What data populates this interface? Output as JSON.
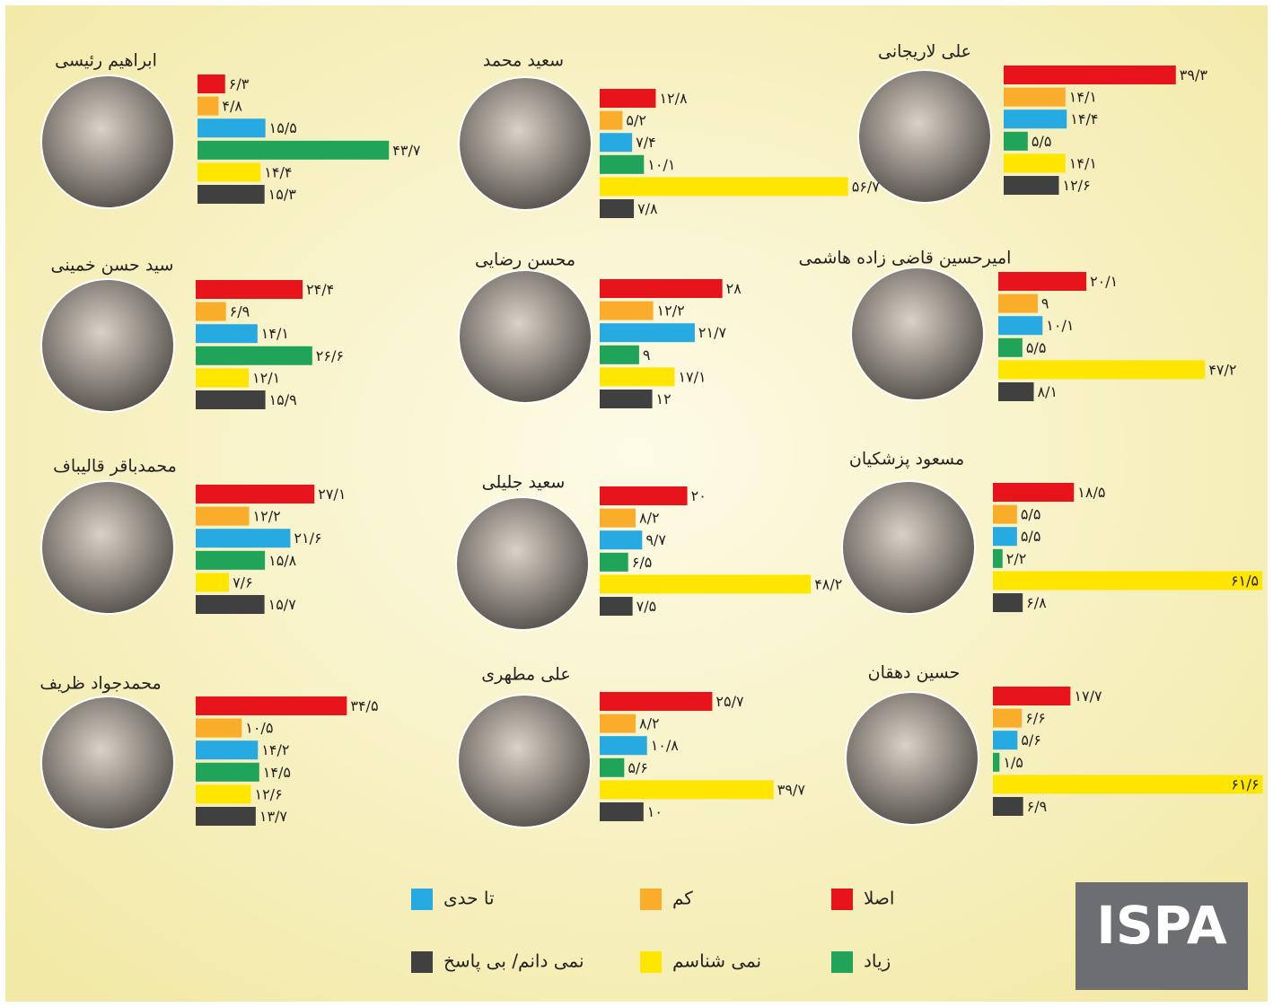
{
  "legend": {
    "items": [
      {
        "name": "اصلا",
        "color": "#e8141b"
      },
      {
        "name": "کم",
        "color": "#f9ad2b"
      },
      {
        "name": "تا حدی",
        "color": "#27a9e1"
      },
      {
        "name": "زیاد",
        "color": "#1fa45a"
      },
      {
        "name": "نمی شناسم",
        "color": "#ffe600"
      },
      {
        "name": "نمی دانم/ بی پاسخ",
        "color": "#404041"
      }
    ]
  },
  "logo": "ISPA",
  "chart_data": [
    {
      "type": "bar",
      "title": "علی لاریجانی",
      "values": [
        39.3,
        14.1,
        14.4,
        5.5,
        14.1,
        12.6
      ],
      "value_labels": [
        "۳۹/۳",
        "۱۴/۱",
        "۱۴/۴",
        "۵/۵",
        "۱۴/۱",
        "۱۲/۶"
      ]
    },
    {
      "type": "bar",
      "title": "سعید محمد",
      "values": [
        12.8,
        5.2,
        7.4,
        10.1,
        56.7,
        7.8
      ],
      "value_labels": [
        "۱۲/۸",
        "۵/۲",
        "۷/۴",
        "۱۰/۱",
        "۵۶/۷",
        "۷/۸"
      ]
    },
    {
      "type": "bar",
      "title": "ابراهیم رئیسی",
      "values": [
        6.3,
        4.8,
        15.5,
        43.7,
        14.4,
        15.3
      ],
      "value_labels": [
        "۶/۳",
        "۴/۸",
        "۱۵/۵",
        "۴۳/۷",
        "۱۴/۴",
        "۱۵/۳"
      ]
    },
    {
      "type": "bar",
      "title": "امیرحسین قاضی زاده هاشمی",
      "values": [
        20.1,
        9,
        10.1,
        5.5,
        47.2,
        8.1
      ],
      "value_labels": [
        "۲۰/۱",
        "۹",
        "۱۰/۱",
        "۵/۵",
        "۴۷/۲",
        "۸/۱"
      ]
    },
    {
      "type": "bar",
      "title": "محسن رضایی",
      "values": [
        28,
        12.2,
        21.7,
        9,
        17.1,
        12
      ],
      "value_labels": [
        "۲۸",
        "۱۲/۲",
        "۲۱/۷",
        "۹",
        "۱۷/۱",
        "۱۲"
      ]
    },
    {
      "type": "bar",
      "title": "سید حسن خمینی",
      "values": [
        24.4,
        6.9,
        14.1,
        26.6,
        12.1,
        15.9
      ],
      "value_labels": [
        "۲۴/۴",
        "۶/۹",
        "۱۴/۱",
        "۲۶/۶",
        "۱۲/۱",
        "۱۵/۹"
      ]
    },
    {
      "type": "bar",
      "title": "مسعود پزشکیان",
      "values": [
        18.5,
        5.5,
        5.5,
        2.2,
        61.5,
        6.8
      ],
      "value_labels": [
        "۱۸/۵",
        "۵/۵",
        "۵/۵",
        "۲/۲",
        "۶۱/۵",
        "۶/۸"
      ]
    },
    {
      "type": "bar",
      "title": "سعید جلیلی",
      "values": [
        20,
        8.2,
        9.7,
        6.5,
        48.2,
        7.5
      ],
      "value_labels": [
        "۲۰",
        "۸/۲",
        "۹/۷",
        "۶/۵",
        "۴۸/۲",
        "۷/۵"
      ]
    },
    {
      "type": "bar",
      "title": "محمدباقر قالیباف",
      "values": [
        27.1,
        12.2,
        21.6,
        15.8,
        7.6,
        15.7
      ],
      "value_labels": [
        "۲۷/۱",
        "۱۲/۲",
        "۲۱/۶",
        "۱۵/۸",
        "۷/۶",
        "۱۵/۷"
      ]
    },
    {
      "type": "bar",
      "title": "حسین دهقان",
      "values": [
        17.7,
        6.6,
        5.6,
        1.5,
        61.6,
        6.9
      ],
      "value_labels": [
        "۱۷/۷",
        "۶/۶",
        "۵/۶",
        "۱/۵",
        "۶۱/۶",
        "۶/۹"
      ]
    },
    {
      "type": "bar",
      "title": "علی مطهری",
      "values": [
        25.7,
        8.2,
        10.8,
        5.6,
        39.7,
        10
      ],
      "value_labels": [
        "۲۵/۷",
        "۸/۲",
        "۱۰/۸",
        "۵/۶",
        "۳۹/۷",
        "۱۰"
      ]
    },
    {
      "type": "bar",
      "title": "محمدجواد ظریف",
      "values": [
        34.5,
        10.5,
        14.2,
        14.5,
        12.6,
        13.7
      ],
      "value_labels": [
        "۳۴/۵",
        "۱۰/۵",
        "۱۴/۲",
        "۱۴/۵",
        "۱۲/۶",
        "۱۳/۷"
      ]
    }
  ]
}
